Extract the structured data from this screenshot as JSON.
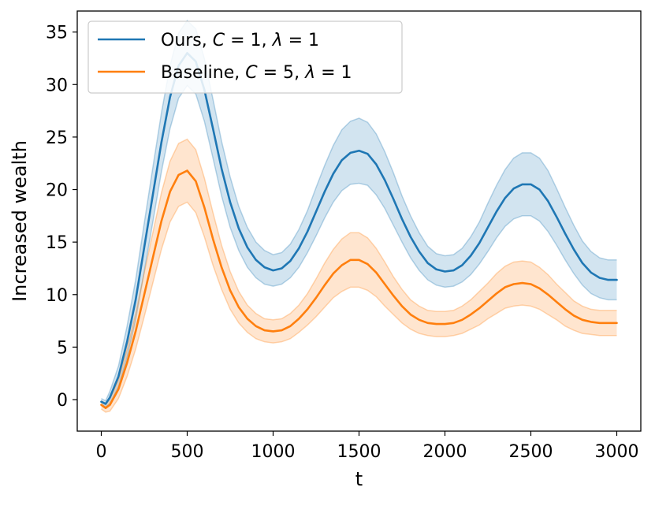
{
  "chart_data": {
    "type": "line",
    "xlabel": "t",
    "ylabel": "Increased wealth",
    "xlim": [
      -140,
      3140
    ],
    "ylim": [
      -3,
      37
    ],
    "xticks": [
      0,
      500,
      1000,
      1500,
      2000,
      2500,
      3000
    ],
    "yticks": [
      0,
      5,
      10,
      15,
      20,
      25,
      30,
      35
    ],
    "grid": false,
    "legend_position": "top-left",
    "series": [
      {
        "name": "Ours, C = 1, λ = 1",
        "legend": {
          "prefix": "Ours, ",
          "params": [
            {
              "sym": "C",
              "val": "1"
            },
            {
              "sym": "λ",
              "val": "1"
            }
          ]
        },
        "color": "#1f77b4",
        "x": [
          0,
          25,
          50,
          100,
          150,
          200,
          250,
          300,
          350,
          400,
          450,
          500,
          550,
          600,
          650,
          700,
          750,
          800,
          850,
          900,
          950,
          1000,
          1050,
          1100,
          1150,
          1200,
          1250,
          1300,
          1350,
          1400,
          1450,
          1500,
          1550,
          1600,
          1650,
          1700,
          1750,
          1800,
          1850,
          1900,
          1950,
          2000,
          2050,
          2100,
          2150,
          2200,
          2250,
          2300,
          2350,
          2400,
          2450,
          2500,
          2550,
          2600,
          2650,
          2700,
          2750,
          2800,
          2850,
          2900,
          2950,
          3000
        ],
        "y": [
          -0.2,
          -0.4,
          0.2,
          2.2,
          5.5,
          9.5,
          14.5,
          19.5,
          24.5,
          28.8,
          31.8,
          33.0,
          32.2,
          29.5,
          25.8,
          22.0,
          18.8,
          16.3,
          14.5,
          13.3,
          12.6,
          12.3,
          12.5,
          13.2,
          14.4,
          16.0,
          17.9,
          19.8,
          21.5,
          22.8,
          23.5,
          23.7,
          23.4,
          22.4,
          20.9,
          19.1,
          17.2,
          15.5,
          14.1,
          13.0,
          12.4,
          12.2,
          12.3,
          12.8,
          13.7,
          14.9,
          16.4,
          17.9,
          19.2,
          20.1,
          20.5,
          20.5,
          20.0,
          18.9,
          17.4,
          15.8,
          14.3,
          13.0,
          12.1,
          11.6,
          11.4,
          11.4
        ],
        "band": [
          0.3,
          0.3,
          0.6,
          1.0,
          1.5,
          1.9,
          2.3,
          2.6,
          2.8,
          3.0,
          3.1,
          3.1,
          3.1,
          3.0,
          2.8,
          2.6,
          2.4,
          2.1,
          1.9,
          1.7,
          1.6,
          1.5,
          1.5,
          1.6,
          1.8,
          2.0,
          2.3,
          2.5,
          2.7,
          2.9,
          3.0,
          3.1,
          3.0,
          2.9,
          2.7,
          2.5,
          2.2,
          2.0,
          1.8,
          1.6,
          1.5,
          1.5,
          1.5,
          1.6,
          1.8,
          2.0,
          2.3,
          2.5,
          2.7,
          2.9,
          3.0,
          3.0,
          3.0,
          2.9,
          2.7,
          2.5,
          2.3,
          2.1,
          2.0,
          1.9,
          1.9,
          1.9
        ]
      },
      {
        "name": "Baseline, C = 5, λ = 1",
        "legend": {
          "prefix": "Baseline, ",
          "params": [
            {
              "sym": "C",
              "val": "5"
            },
            {
              "sym": "λ",
              "val": "1"
            }
          ]
        },
        "color": "#ff7f0e",
        "x": [
          0,
          25,
          50,
          100,
          150,
          200,
          250,
          300,
          350,
          400,
          450,
          500,
          550,
          600,
          650,
          700,
          750,
          800,
          850,
          900,
          950,
          1000,
          1050,
          1100,
          1150,
          1200,
          1250,
          1300,
          1350,
          1400,
          1450,
          1500,
          1550,
          1600,
          1650,
          1700,
          1750,
          1800,
          1850,
          1900,
          1950,
          2000,
          2050,
          2100,
          2150,
          2200,
          2250,
          2300,
          2350,
          2400,
          2450,
          2500,
          2550,
          2600,
          2650,
          2700,
          2750,
          2800,
          2850,
          2900,
          2950,
          3000
        ],
        "y": [
          -0.5,
          -0.8,
          -0.5,
          1.0,
          3.5,
          6.5,
          10.0,
          13.5,
          17.0,
          19.8,
          21.4,
          21.8,
          20.8,
          18.3,
          15.3,
          12.6,
          10.4,
          8.8,
          7.7,
          7.0,
          6.6,
          6.5,
          6.6,
          7.0,
          7.7,
          8.6,
          9.7,
          10.9,
          12.0,
          12.8,
          13.3,
          13.3,
          12.9,
          12.1,
          11.0,
          9.9,
          8.9,
          8.1,
          7.6,
          7.3,
          7.2,
          7.2,
          7.3,
          7.6,
          8.1,
          8.7,
          9.4,
          10.1,
          10.7,
          11.0,
          11.1,
          11.0,
          10.6,
          10.0,
          9.3,
          8.6,
          8.0,
          7.6,
          7.4,
          7.3,
          7.3,
          7.3
        ],
        "band": [
          0.4,
          0.4,
          0.6,
          0.9,
          1.3,
          1.7,
          2.1,
          2.4,
          2.7,
          2.9,
          3.0,
          3.0,
          3.0,
          2.8,
          2.5,
          2.1,
          1.8,
          1.5,
          1.3,
          1.2,
          1.1,
          1.1,
          1.1,
          1.2,
          1.3,
          1.5,
          1.8,
          2.1,
          2.3,
          2.5,
          2.6,
          2.6,
          2.5,
          2.3,
          2.1,
          1.8,
          1.6,
          1.4,
          1.3,
          1.2,
          1.2,
          1.2,
          1.2,
          1.3,
          1.4,
          1.6,
          1.7,
          1.9,
          2.0,
          2.1,
          2.1,
          2.1,
          2.0,
          1.9,
          1.7,
          1.6,
          1.4,
          1.3,
          1.2,
          1.2,
          1.2,
          1.2
        ]
      }
    ]
  }
}
